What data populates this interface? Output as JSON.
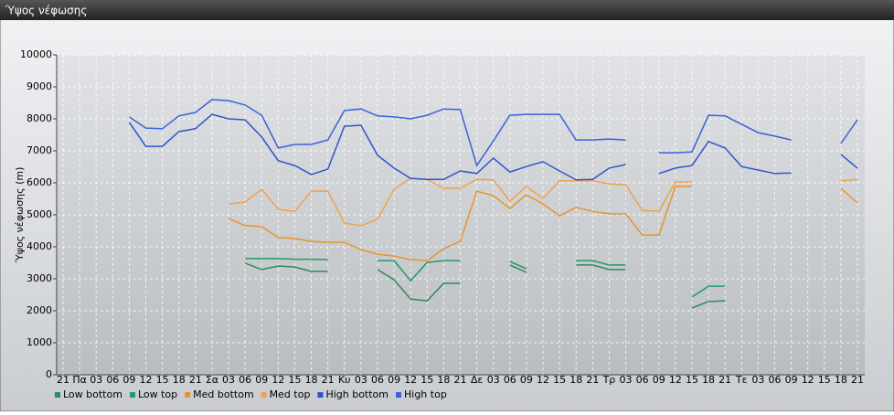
{
  "chart_data": {
    "type": "line",
    "title": "Ύψος νέφωσης",
    "y_label": "Ύψος νέφωσης (m)",
    "categories": [
      "21",
      "Πα",
      "03",
      "06",
      "09",
      "12",
      "15",
      "18",
      "21",
      "Σα",
      "03",
      "06",
      "09",
      "12",
      "15",
      "18",
      "21",
      "Κυ",
      "03",
      "06",
      "09",
      "12",
      "15",
      "18",
      "21",
      "Δε",
      "03",
      "06",
      "09",
      "12",
      "15",
      "18",
      "21",
      "Τρ",
      "03",
      "06",
      "09",
      "12",
      "15",
      "18",
      "21",
      "Τε",
      "03",
      "06",
      "09",
      "12",
      "15",
      "18",
      "21"
    ],
    "series": [
      {
        "name": "Low bottom",
        "color": "#2e8b57",
        "values": [
          null,
          null,
          null,
          null,
          null,
          null,
          null,
          null,
          null,
          null,
          null,
          3490,
          3290,
          3400,
          3370,
          3230,
          3230,
          null,
          null,
          3290,
          2970,
          2370,
          2310,
          2860,
          2860,
          null,
          null,
          3430,
          3200,
          null,
          null,
          3430,
          3430,
          3290,
          3290,
          null,
          null,
          null,
          2090,
          2290,
          2310,
          null,
          null,
          null,
          null,
          null,
          null,
          null,
          null
        ]
      },
      {
        "name": "Low top",
        "color": "#1e9a6a",
        "values": [
          null,
          null,
          null,
          null,
          null,
          null,
          null,
          null,
          null,
          null,
          null,
          3630,
          3630,
          3630,
          3610,
          3610,
          3600,
          null,
          null,
          3570,
          3570,
          2940,
          3510,
          3570,
          3570,
          null,
          null,
          3540,
          3310,
          null,
          null,
          3570,
          3570,
          3430,
          3430,
          null,
          null,
          null,
          2430,
          2770,
          2770,
          null,
          null,
          null,
          null,
          null,
          null,
          null,
          null
        ]
      },
      {
        "name": "Med bottom",
        "color": "#e8932e",
        "values": [
          null,
          null,
          null,
          null,
          null,
          null,
          null,
          null,
          null,
          null,
          4890,
          4660,
          4630,
          4290,
          4260,
          4170,
          4140,
          4140,
          3910,
          3770,
          3710,
          3600,
          3570,
          3940,
          4170,
          5740,
          5600,
          5200,
          5630,
          5340,
          4970,
          5230,
          5110,
          5030,
          5030,
          4370,
          4370,
          5890,
          5890,
          null,
          null,
          null,
          null,
          null,
          null,
          null,
          null,
          5830,
          5370
        ]
      },
      {
        "name": "Med top",
        "color": "#f0a24a",
        "values": [
          null,
          null,
          null,
          null,
          null,
          null,
          null,
          null,
          null,
          null,
          5340,
          5400,
          5800,
          5170,
          5110,
          5740,
          5740,
          4740,
          4660,
          4860,
          5800,
          6140,
          6110,
          5830,
          5830,
          6110,
          6090,
          5430,
          5890,
          5510,
          6060,
          6060,
          6060,
          5970,
          5940,
          5140,
          5110,
          6030,
          6030,
          null,
          null,
          null,
          null,
          null,
          null,
          null,
          null,
          6060,
          6110
        ]
      },
      {
        "name": "High bottom",
        "color": "#2f55cc",
        "values": [
          null,
          null,
          null,
          null,
          7890,
          7140,
          7140,
          7600,
          7690,
          8140,
          8000,
          7970,
          7430,
          6690,
          6540,
          6260,
          6430,
          7770,
          7800,
          6860,
          6460,
          6140,
          6110,
          6110,
          6370,
          6290,
          6770,
          6340,
          6510,
          6660,
          6370,
          6090,
          6110,
          6460,
          6570,
          null,
          6290,
          6460,
          6540,
          7290,
          7090,
          6510,
          6400,
          6290,
          6310,
          null,
          null,
          6890,
          6460
        ]
      },
      {
        "name": "High top",
        "color": "#3a62d8",
        "values": [
          null,
          null,
          null,
          null,
          8060,
          7710,
          7690,
          8090,
          8200,
          8600,
          8570,
          8430,
          8110,
          7090,
          7200,
          7200,
          7340,
          8260,
          8310,
          8090,
          8060,
          8000,
          8110,
          8310,
          8290,
          6540,
          7310,
          8110,
          8140,
          8140,
          8140,
          7340,
          7340,
          7370,
          7340,
          null,
          6940,
          6940,
          6970,
          8110,
          8090,
          7830,
          7570,
          7460,
          7340,
          null,
          null,
          7230,
          7970
        ]
      }
    ],
    "ylim": [
      0,
      10000
    ],
    "yticks": [
      0,
      1000,
      2000,
      3000,
      4000,
      5000,
      6000,
      7000,
      8000,
      9000,
      10000
    ],
    "grid": true
  }
}
